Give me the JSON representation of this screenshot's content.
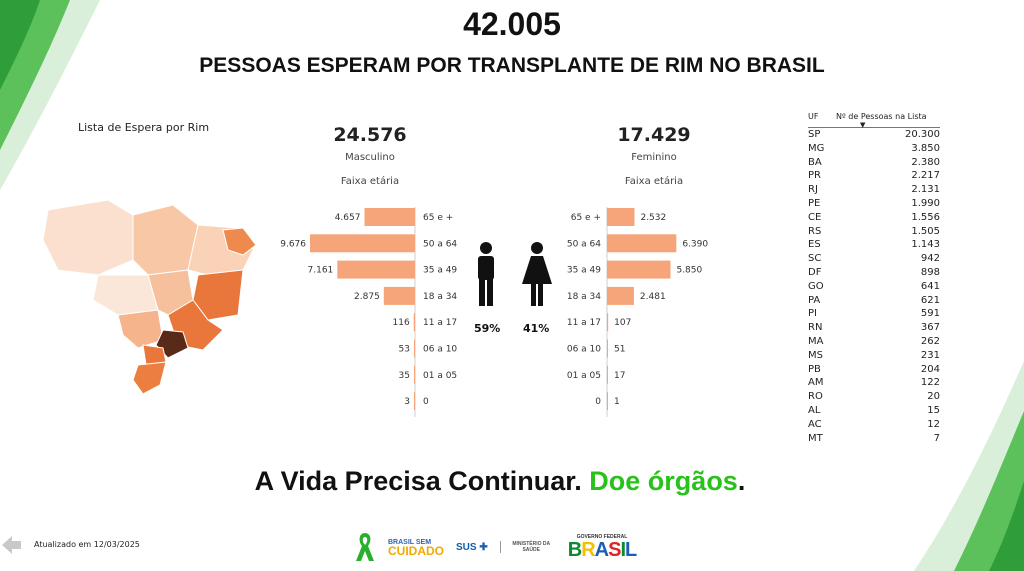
{
  "header": {
    "total": "42.005",
    "headline": "PESSOAS ESPERAM POR TRANSPLANTE DE RIM NO BRASIL"
  },
  "map": {
    "title": "Lista de Espera por Rim",
    "colors": {
      "high": "#5a2a18",
      "mid": "#e8783a",
      "low": "#fad9c4",
      "lowest": "#fbe7da"
    }
  },
  "male": {
    "total": "24.576",
    "label": "Masculino",
    "sub": "Faixa etária",
    "share": "59%",
    "icon": "male-person-icon"
  },
  "female": {
    "total": "17.429",
    "label": "Feminino",
    "sub": "Faixa etária",
    "share": "41%",
    "icon": "female-person-icon"
  },
  "chart_data": {
    "type": "bar",
    "orientation": "horizontal-mirrored",
    "categories": [
      "65 e +",
      "50 a 64",
      "35 a 49",
      "18 a 34",
      "11 a 17",
      "06 a 10",
      "01 a 05",
      "0"
    ],
    "series": [
      {
        "name": "Masculino",
        "values": [
          4657,
          9676,
          7161,
          2875,
          116,
          53,
          35,
          3
        ],
        "labels": [
          "4.657",
          "9.676",
          "7.161",
          "2.875",
          "116",
          "53",
          "35",
          "3"
        ],
        "color": "#f6a57a"
      },
      {
        "name": "Feminino",
        "values": [
          2532,
          6390,
          5850,
          2481,
          107,
          51,
          17,
          1
        ],
        "labels": [
          "2.532",
          "6.390",
          "5.850",
          "2.481",
          "107",
          "51",
          "17",
          "1"
        ],
        "color": "#f6a57a"
      }
    ]
  },
  "uf_table": {
    "col_uf": "UF",
    "col_n": "Nº de Pessoas na Lista",
    "rows": [
      {
        "uf": "SP",
        "n": "20.300"
      },
      {
        "uf": "MG",
        "n": "3.850"
      },
      {
        "uf": "BA",
        "n": "2.380"
      },
      {
        "uf": "PR",
        "n": "2.217"
      },
      {
        "uf": "RJ",
        "n": "2.131"
      },
      {
        "uf": "PE",
        "n": "1.990"
      },
      {
        "uf": "CE",
        "n": "1.556"
      },
      {
        "uf": "RS",
        "n": "1.505"
      },
      {
        "uf": "ES",
        "n": "1.143"
      },
      {
        "uf": "SC",
        "n": "942"
      },
      {
        "uf": "DF",
        "n": "898"
      },
      {
        "uf": "GO",
        "n": "641"
      },
      {
        "uf": "PA",
        "n": "621"
      },
      {
        "uf": "PI",
        "n": "591"
      },
      {
        "uf": "RN",
        "n": "367"
      },
      {
        "uf": "MA",
        "n": "262"
      },
      {
        "uf": "MS",
        "n": "231"
      },
      {
        "uf": "PB",
        "n": "204"
      },
      {
        "uf": "AM",
        "n": "122"
      },
      {
        "uf": "RO",
        "n": "20"
      },
      {
        "uf": "AL",
        "n": "15"
      },
      {
        "uf": "AC",
        "n": "12"
      },
      {
        "uf": "MT",
        "n": "7"
      }
    ]
  },
  "slogan": {
    "part1": "A Vida Precisa Continuar.",
    "part2": "Doe órgãos",
    "end": "."
  },
  "footer": {
    "updated": "Atualizado em 12/03/2025",
    "logo_bem_top": "BRASIL SEM",
    "logo_bem_main": "CUIDADO",
    "logo_sus": "SUS",
    "logo_ministerio": "MINISTÉRIO DA SAÚDE",
    "logo_gov_top": "GOVERNO FEDERAL",
    "logo_gov_main": "BRASIL"
  },
  "colors": {
    "accent_green": "#28c21a",
    "bar": "#f6a57a"
  }
}
